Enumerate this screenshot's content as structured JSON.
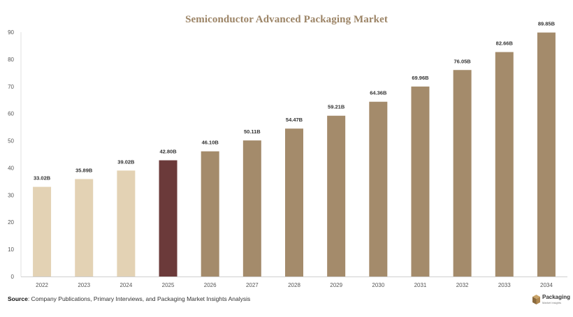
{
  "chart_data": {
    "type": "bar",
    "title": "Semiconductor Advanced Packaging Market",
    "categories": [
      "2022",
      "2023",
      "2024",
      "2025",
      "2026",
      "2027",
      "2028",
      "2029",
      "2030",
      "2031",
      "2032",
      "2033",
      "2034"
    ],
    "values": [
      33.02,
      35.89,
      39.02,
      42.8,
      46.1,
      50.11,
      54.47,
      59.21,
      64.36,
      69.96,
      76.05,
      82.66,
      89.85
    ],
    "data_labels": [
      "33.02B",
      "35.89B",
      "39.02B",
      "42.80B",
      "46.10B",
      "50.11B",
      "54.47B",
      "59.21B",
      "64.36B",
      "69.96B",
      "76.05B",
      "82.66B",
      "89.85B"
    ],
    "ylim": [
      0,
      90
    ],
    "yticks": [
      0,
      10,
      20,
      30,
      40,
      50,
      60,
      70,
      80,
      90
    ],
    "xlabel": "",
    "ylabel": "",
    "grid": false,
    "colors": {
      "historical": "#e3d2b4",
      "current": "#6b3a3a",
      "forecast": "#a48b6b"
    },
    "bar_groups": [
      "historical",
      "historical",
      "historical",
      "current",
      "forecast",
      "forecast",
      "forecast",
      "forecast",
      "forecast",
      "forecast",
      "forecast",
      "forecast",
      "forecast"
    ]
  },
  "footer": {
    "source_label": "Source",
    "source_text": ": Company Publications, Primary Interviews, and Packaging Market Insights Analysis"
  },
  "logo": {
    "name": "Packaging",
    "sub": "Market Insights"
  }
}
